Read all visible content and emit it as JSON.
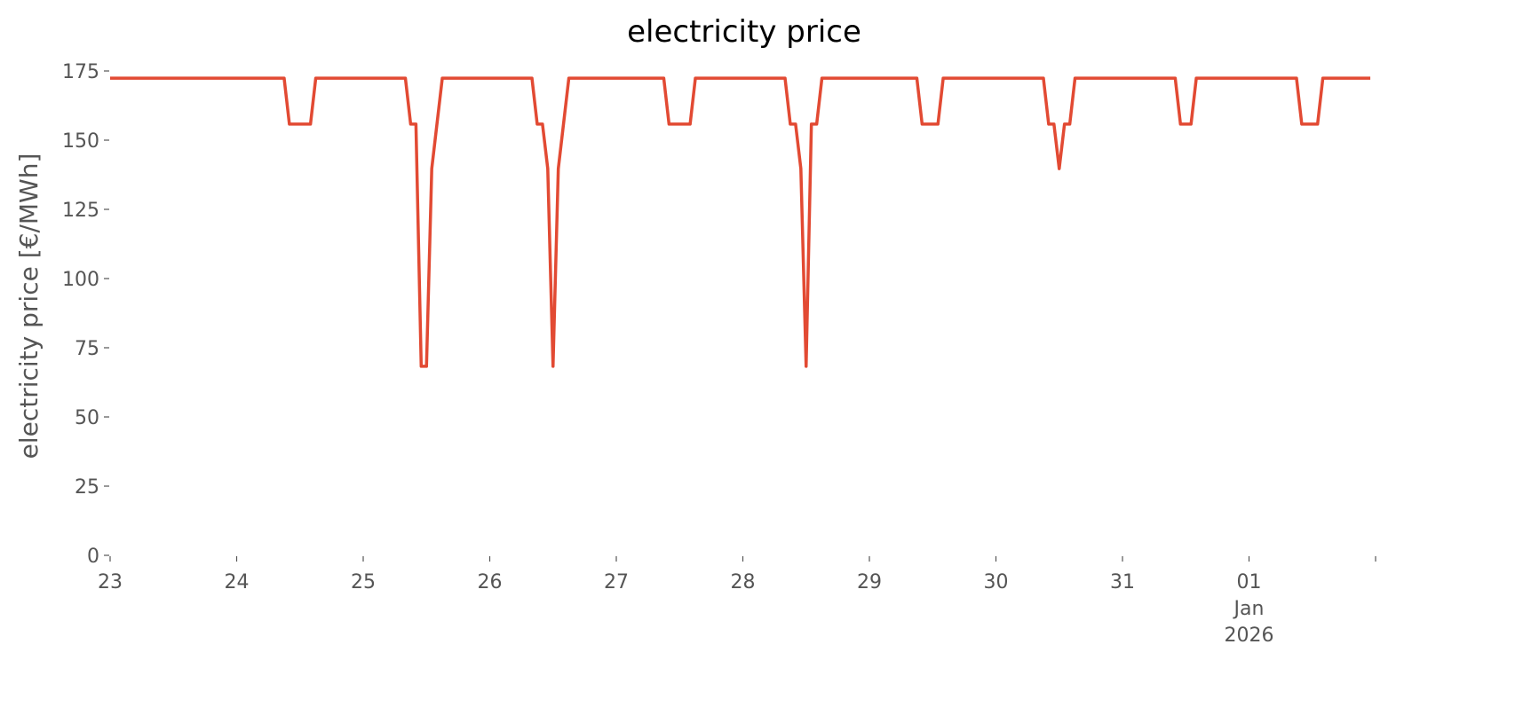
{
  "chart_data": {
    "type": "line",
    "title": "electricity price",
    "y_label": "electricity price [€/MWh]",
    "x": [
      0,
      33,
      34,
      38,
      39,
      56,
      57,
      58,
      59,
      60,
      61,
      63,
      80,
      81,
      82,
      83,
      84,
      85,
      87,
      105,
      106,
      110,
      111,
      128,
      129,
      130,
      131,
      132,
      133,
      134,
      135,
      153,
      154,
      157,
      158,
      177,
      178,
      179,
      180,
      181,
      182,
      183,
      202,
      203,
      205,
      206,
      225,
      226,
      229,
      230,
      239
    ],
    "series": [
      {
        "name": "electricity price",
        "color": "#e24a33",
        "values": [
          172.4,
          172.4,
          155.8,
          155.8,
          172.4,
          172.4,
          155.8,
          155.8,
          68.3,
          68.3,
          139.7,
          172.4,
          172.4,
          155.8,
          155.8,
          139.7,
          68.3,
          139.7,
          172.4,
          172.4,
          155.8,
          155.8,
          172.4,
          172.4,
          155.8,
          155.8,
          139.7,
          68.3,
          155.8,
          155.8,
          172.4,
          172.4,
          155.8,
          155.8,
          172.4,
          172.4,
          155.8,
          155.8,
          139.7,
          155.8,
          155.8,
          172.4,
          172.4,
          155.8,
          155.8,
          172.4,
          172.4,
          155.8,
          155.8,
          172.4,
          172.4
        ]
      }
    ],
    "xlim": [
      0,
      240
    ],
    "xticks": [
      {
        "value": 0,
        "label": "23"
      },
      {
        "value": 24,
        "label": "24"
      },
      {
        "value": 48,
        "label": "25"
      },
      {
        "value": 72,
        "label": "26"
      },
      {
        "value": 96,
        "label": "27"
      },
      {
        "value": 120,
        "label": "28"
      },
      {
        "value": 144,
        "label": "29"
      },
      {
        "value": 168,
        "label": "30"
      },
      {
        "value": 192,
        "label": "31"
      },
      {
        "value": 216,
        "label": "01\nJan\n2026"
      },
      {
        "value": 240,
        "label": null
      }
    ],
    "ylim": [
      0,
      175
    ],
    "yticks": [
      0,
      25,
      50,
      75,
      100,
      125,
      150,
      175
    ],
    "grid": false
  }
}
